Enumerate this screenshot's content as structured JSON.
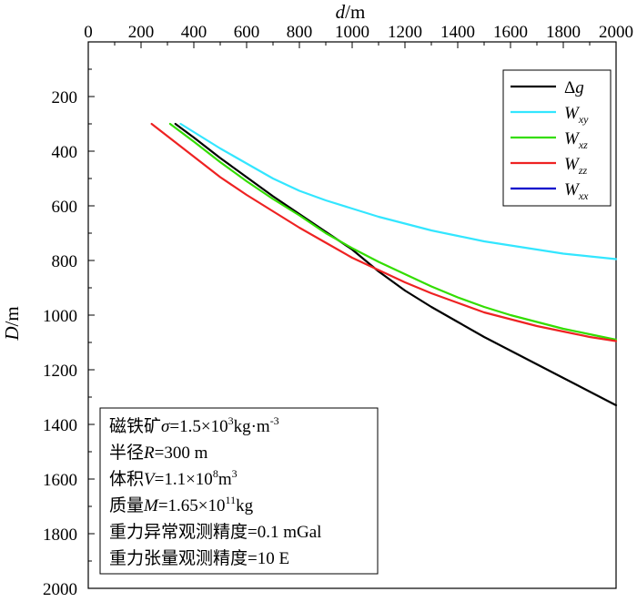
{
  "chart_data": {
    "type": "line",
    "xlabel": "d/m",
    "ylabel": "D/m",
    "xlim": [
      0,
      2000
    ],
    "ylim": [
      2000,
      0
    ],
    "y_inverted": true,
    "x_axis_position": "top",
    "x_ticks": [
      "0",
      "200",
      "400",
      "600",
      "800",
      "1000",
      "1200",
      "1400",
      "1600",
      "1800",
      "2000"
    ],
    "y_ticks": [
      "200",
      "400",
      "600",
      "800",
      "1000",
      "1200",
      "1400",
      "1600",
      "1800",
      "2000"
    ],
    "legend_position": "top-right",
    "series": [
      {
        "name": "Δg",
        "color": "#000000",
        "x": [
          330,
          400,
          500,
          600,
          700,
          800,
          900,
          1000,
          1100,
          1200,
          1300,
          1400,
          1500,
          1600,
          1700,
          1800,
          1900,
          2000
        ],
        "y": [
          300,
          350,
          425,
          495,
          565,
          630,
          695,
          760,
          840,
          910,
          970,
          1025,
          1080,
          1130,
          1180,
          1230,
          1280,
          1330
        ]
      },
      {
        "name": "Wxy",
        "color": "#33e6ff",
        "x": [
          350,
          400,
          500,
          600,
          700,
          800,
          900,
          1000,
          1100,
          1200,
          1300,
          1400,
          1500,
          1600,
          1700,
          1800,
          1900,
          2000
        ],
        "y": [
          300,
          330,
          390,
          445,
          500,
          545,
          580,
          610,
          640,
          665,
          690,
          710,
          730,
          745,
          760,
          775,
          785,
          795
        ]
      },
      {
        "name": "Wxz",
        "color": "#33dd00",
        "x": [
          310,
          400,
          500,
          600,
          700,
          800,
          900,
          1000,
          1100,
          1200,
          1300,
          1400,
          1500,
          1600,
          1700,
          1800,
          1900,
          2000
        ],
        "y": [
          300,
          365,
          440,
          510,
          575,
          635,
          700,
          755,
          805,
          850,
          895,
          935,
          970,
          1000,
          1025,
          1050,
          1070,
          1090
        ]
      },
      {
        "name": "Wzz",
        "color": "#ee2222",
        "x": [
          240,
          300,
          400,
          500,
          600,
          700,
          800,
          900,
          1000,
          1100,
          1200,
          1300,
          1400,
          1500,
          1600,
          1700,
          1800,
          1900,
          2000
        ],
        "y": [
          300,
          345,
          420,
          495,
          560,
          620,
          680,
          735,
          790,
          835,
          880,
          920,
          955,
          990,
          1015,
          1040,
          1060,
          1080,
          1095
        ]
      },
      {
        "name": "Wxx",
        "color": "#0000cc",
        "x": [],
        "y": []
      }
    ],
    "legend": [
      {
        "base": "Δ",
        "italic": "g",
        "sub": ""
      },
      {
        "base": "",
        "italic": "W",
        "sub": "xy"
      },
      {
        "base": "",
        "italic": "W",
        "sub": "xz"
      },
      {
        "base": "",
        "italic": "W",
        "sub": "zz"
      },
      {
        "base": "",
        "italic": "W",
        "sub": "xx"
      }
    ],
    "annotations": [
      {
        "pre": "磁铁矿",
        "var": "σ",
        "mid": "=1.5×10",
        "sup": "3",
        "post": "kg·m",
        "sup2": "-3"
      },
      {
        "pre": "半径",
        "var": "R",
        "mid": "=300 m",
        "sup": "",
        "post": "",
        "sup2": ""
      },
      {
        "pre": "体积",
        "var": "V",
        "mid": "=1.1×10",
        "sup": "8",
        "post": "m",
        "sup2": "3"
      },
      {
        "pre": "质量",
        "var": "M",
        "mid": "=1.65×10",
        "sup": "11",
        "post": "kg",
        "sup2": ""
      },
      {
        "pre": "重力异常观测精度=0.1 mGal",
        "var": "",
        "mid": "",
        "sup": "",
        "post": "",
        "sup2": ""
      },
      {
        "pre": "重力张量观测精度=10 E",
        "var": "",
        "mid": "",
        "sup": "",
        "post": "",
        "sup2": ""
      }
    ]
  }
}
